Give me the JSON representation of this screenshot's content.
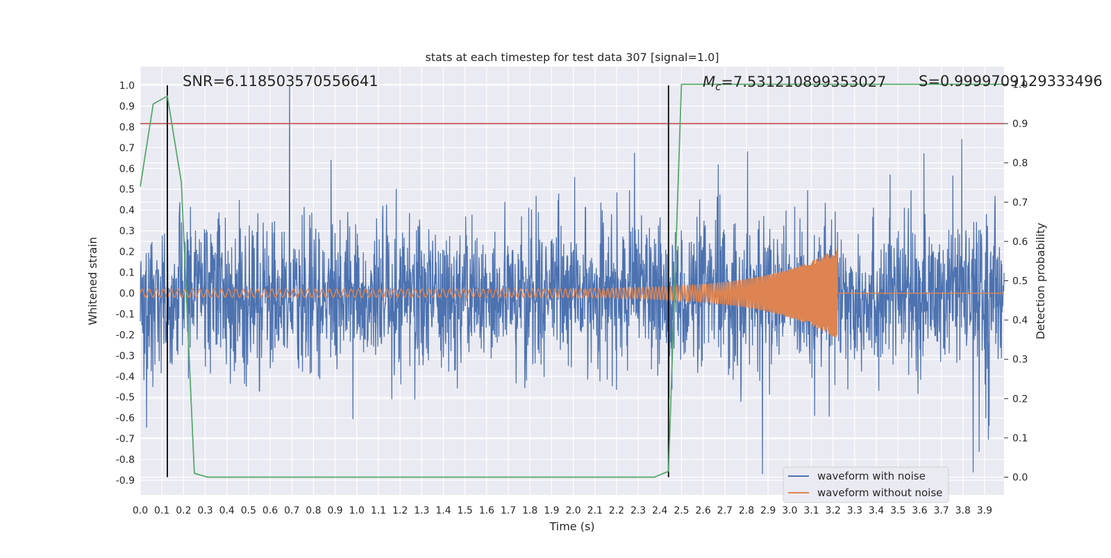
{
  "chart_data": {
    "type": "line",
    "title": "stats at each timestep for test data 307 [signal=1.0]",
    "xlabel": "Time (s)",
    "ylabel": "Whitened strain",
    "y2label": "Detection probability",
    "xlim": [
      0.0,
      3.99
    ],
    "ylim": [
      -0.97,
      1.09
    ],
    "y2lim": [
      -0.045,
      1.045
    ],
    "x_ticks": [
      "0.0",
      "0.1",
      "0.2",
      "0.3",
      "0.4",
      "0.5",
      "0.6",
      "0.7",
      "0.8",
      "0.9",
      "1.0",
      "1.1",
      "1.2",
      "1.3",
      "1.4",
      "1.5",
      "1.6",
      "1.7",
      "1.8",
      "1.9",
      "2.0",
      "2.1",
      "2.2",
      "2.3",
      "2.4",
      "2.5",
      "2.6",
      "2.7",
      "2.8",
      "2.9",
      "3.0",
      "3.1",
      "3.2",
      "3.3",
      "3.4",
      "3.5",
      "3.6",
      "3.7",
      "3.8",
      "3.9"
    ],
    "y_ticks": [
      "1.0",
      "0.9",
      "0.8",
      "0.7",
      "0.6",
      "0.5",
      "0.4",
      "0.3",
      "0.2",
      "0.1",
      "0.0",
      "-0.1",
      "-0.2",
      "-0.3",
      "-0.4",
      "-0.5",
      "-0.6",
      "-0.7",
      "-0.8",
      "-0.9"
    ],
    "y2_ticks": [
      "1.0",
      "0.9",
      "0.8",
      "0.7",
      "0.6",
      "0.5",
      "0.4",
      "0.3",
      "0.2",
      "0.1",
      "0.0"
    ],
    "annotations": {
      "snr": "SNR=6.118503570556641",
      "mc_symbol": "M",
      "mc_sub": "c",
      "mc_value": "=7.531210899353027",
      "s": "S=0.9999709129333496"
    },
    "legend": {
      "position": "lower-right",
      "entries": [
        "waveform with noise",
        "waveform without noise"
      ]
    },
    "grid": true,
    "threshold_probability": 0.9,
    "vertical_markers_s": [
      0.125,
      2.44
    ],
    "series": [
      {
        "name": "waveform with noise",
        "color": "#4c72b0",
        "description_values": {
          "approx_range": [
            -0.87,
            1.0
          ]
        }
      },
      {
        "name": "waveform without noise",
        "color": "#dd8452",
        "chirp": {
          "start_amplitude": 0.02,
          "peak_amplitude": 0.22,
          "merger_time": 3.22,
          "start_freq_hz": 30,
          "end_freq_hz": 260
        }
      },
      {
        "name": "detection probability",
        "color": "#55a868",
        "axis": "right",
        "x": [
          0.0,
          0.06,
          0.125,
          0.19,
          0.25,
          0.31,
          0.375,
          0.44,
          0.5,
          1.0,
          1.5,
          2.0,
          2.3,
          2.375,
          2.44,
          2.5,
          2.55,
          3.0,
          3.5,
          3.99
        ],
        "y": [
          0.74,
          0.95,
          0.97,
          0.75,
          0.01,
          0.0,
          0.0,
          0.0,
          0.0,
          0.0,
          0.0,
          0.0,
          0.0,
          0.0,
          0.015,
          1.0,
          1.0,
          1.0,
          1.0,
          1.0
        ]
      }
    ],
    "colors": {
      "background": "#eaeaf2",
      "grid": "#ffffff",
      "threshold": "#c44e52",
      "markers": "#000000"
    }
  }
}
